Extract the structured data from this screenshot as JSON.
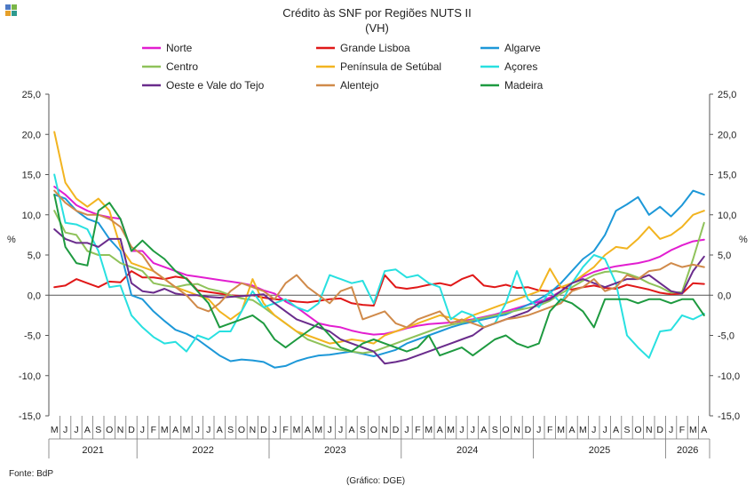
{
  "header": {
    "title": "Crédito às SNF por Regiões NUTS II",
    "subtitle": "(VH)",
    "logo_colors": [
      "#4e79c4",
      "#7ab648",
      "#e6a02a",
      "#2e9a8e"
    ]
  },
  "footer": {
    "source": "Fonte: BdP",
    "credit": "(Gráfico: DGE)"
  },
  "chart_data": {
    "type": "line",
    "title": "Crédito às SNF por Regiões NUTS II",
    "subtitle": "(VH)",
    "ylabel": "%",
    "ylim": [
      -15,
      25
    ],
    "yticks": [
      -15,
      -10,
      -5,
      0,
      5,
      10,
      15,
      20,
      25
    ],
    "ytick_labels": [
      "-15,0",
      "-10,0",
      "-5,0",
      "0,0",
      "5,0",
      "10,0",
      "15,0",
      "20,0",
      "25,0"
    ],
    "grid": false,
    "legend_position": "top",
    "months": [
      "M",
      "J",
      "J",
      "A",
      "S",
      "O",
      "N",
      "D",
      "J",
      "F",
      "M",
      "A",
      "M",
      "J",
      "J",
      "A",
      "S",
      "O",
      "N",
      "D",
      "J",
      "F",
      "M",
      "A",
      "M",
      "J",
      "J",
      "A",
      "S",
      "O",
      "N",
      "D",
      "J",
      "F",
      "M",
      "A",
      "M",
      "J",
      "J",
      "A",
      "S",
      "O",
      "N",
      "D",
      "J",
      "F",
      "M",
      "A",
      "M",
      "J",
      "J",
      "A",
      "S",
      "O",
      "N",
      "D",
      "J",
      "F",
      "M",
      "A"
    ],
    "years": [
      {
        "label": "2021",
        "start": 0,
        "end": 8
      },
      {
        "label": "2022",
        "start": 8,
        "end": 20
      },
      {
        "label": "2023",
        "start": 20,
        "end": 32
      },
      {
        "label": "2024",
        "start": 32,
        "end": 44
      },
      {
        "label": "2025",
        "start": 44,
        "end": 56
      },
      {
        "label": "2026",
        "start": 56,
        "end": 60
      }
    ],
    "series": [
      {
        "name": "Norte",
        "color": "#e21ed0",
        "values": [
          13.5,
          12.5,
          11.2,
          10.5,
          10.0,
          9.7,
          9.5,
          5.5,
          5.5,
          4.0,
          3.5,
          3.0,
          2.5,
          2.3,
          2.1,
          1.9,
          1.7,
          1.5,
          1.2,
          0.6,
          0.2,
          -0.8,
          -1.5,
          -2.5,
          -3.5,
          -3.8,
          -4.0,
          -4.4,
          -4.7,
          -4.9,
          -4.8,
          -4.5,
          -4.1,
          -3.8,
          -3.6,
          -3.5,
          -3.4,
          -3.2,
          -3.0,
          -2.7,
          -2.4,
          -2.0,
          -1.6,
          -1.2,
          -0.8,
          -0.3,
          0.5,
          1.5,
          2.3,
          2.9,
          3.3,
          3.6,
          3.8,
          4.0,
          4.3,
          4.8,
          5.6,
          6.2,
          6.7,
          6.9
        ]
      },
      {
        "name": "Grande Lisboa",
        "color": "#e01818",
        "values": [
          1.0,
          1.2,
          2.0,
          1.5,
          1.0,
          1.7,
          1.6,
          3.0,
          2.2,
          2.2,
          2.0,
          2.3,
          2.1,
          0.6,
          0.4,
          0.2,
          0.0,
          -0.1,
          0.0,
          -0.3,
          -0.5,
          -0.6,
          -0.8,
          -0.9,
          -0.7,
          -0.5,
          -0.4,
          -1.0,
          -1.2,
          -1.3,
          2.5,
          1.0,
          0.8,
          1.0,
          1.3,
          1.5,
          1.2,
          2.0,
          2.5,
          1.2,
          1.0,
          1.3,
          0.9,
          1.0,
          0.6,
          0.5,
          1.0,
          0.7,
          1.0,
          1.2,
          0.9,
          0.8,
          1.3,
          1.0,
          0.7,
          0.3,
          0.1,
          0.2,
          1.5,
          1.4
        ]
      },
      {
        "name": "Algarve",
        "color": "#1d98d8",
        "values": [
          12.5,
          12.0,
          10.5,
          9.5,
          9.0,
          7.0,
          5.5,
          0.0,
          -0.5,
          -2.0,
          -3.2,
          -4.3,
          -4.8,
          -5.5,
          -6.5,
          -7.5,
          -8.2,
          -8.0,
          -8.1,
          -8.3,
          -9.0,
          -8.8,
          -8.2,
          -7.8,
          -7.5,
          -7.4,
          -7.2,
          -7.0,
          -7.3,
          -7.6,
          -7.2,
          -6.8,
          -6.0,
          -5.5,
          -5.0,
          -4.5,
          -4.0,
          -3.6,
          -3.3,
          -3.0,
          -2.7,
          -2.4,
          -1.8,
          -1.2,
          -0.5,
          0.3,
          1.5,
          3.0,
          4.5,
          5.5,
          7.5,
          10.5,
          11.3,
          12.2,
          10.0,
          11.0,
          9.8,
          11.2,
          13.0,
          12.5
        ]
      },
      {
        "name": "Centro",
        "color": "#8fc25a",
        "values": [
          10.5,
          7.8,
          7.5,
          5.5,
          5.0,
          5.0,
          4.0,
          3.5,
          3.0,
          1.5,
          1.2,
          1.0,
          1.3,
          1.4,
          0.8,
          0.5,
          0.0,
          -0.4,
          -0.6,
          -1.5,
          -2.5,
          -3.5,
          -4.5,
          -5.5,
          -6.0,
          -6.5,
          -6.8,
          -7.0,
          -7.2,
          -7.0,
          -6.5,
          -6.0,
          -5.5,
          -5.0,
          -4.5,
          -4.0,
          -3.7,
          -3.4,
          -3.1,
          -2.8,
          -2.5,
          -2.2,
          -1.9,
          -1.6,
          -1.3,
          -0.7,
          0.2,
          1.0,
          1.8,
          2.5,
          2.9,
          3.0,
          2.7,
          2.2,
          1.5,
          1.0,
          0.3,
          0.4,
          4.5,
          9.0
        ]
      },
      {
        "name": "Península de Setúbal",
        "color": "#f2b420",
        "values": [
          20.3,
          14.0,
          12.0,
          11.0,
          12.0,
          10.5,
          6.0,
          4.0,
          3.5,
          3.0,
          2.0,
          1.0,
          0.5,
          0.0,
          -0.5,
          -2.0,
          -3.0,
          -2.0,
          2.0,
          -1.0,
          -2.5,
          -3.5,
          -4.5,
          -5.0,
          -5.5,
          -6.0,
          -5.8,
          -5.5,
          -5.7,
          -6.0,
          -5.0,
          -4.5,
          -4.0,
          -3.5,
          -3.0,
          -2.5,
          -2.8,
          -3.2,
          -2.5,
          -2.0,
          -1.5,
          -1.0,
          -0.5,
          0.0,
          0.5,
          3.3,
          1.0,
          1.5,
          2.5,
          3.5,
          5.0,
          6.0,
          5.8,
          7.0,
          8.5,
          7.0,
          7.5,
          8.5,
          10.0,
          10.5
        ]
      },
      {
        "name": "Açores",
        "color": "#28e0e0",
        "values": [
          15.0,
          9.0,
          8.8,
          8.2,
          5.5,
          1.0,
          1.2,
          -2.5,
          -4.0,
          -5.2,
          -6.0,
          -5.8,
          -7.0,
          -5.0,
          -5.5,
          -4.5,
          -4.5,
          -2.0,
          0.5,
          -1.5,
          -1.0,
          -0.5,
          -1.5,
          -2.0,
          -1.0,
          2.5,
          2.0,
          1.5,
          1.8,
          -1.0,
          3.0,
          3.2,
          2.2,
          2.5,
          1.5,
          1.0,
          -3.0,
          -2.0,
          -2.5,
          -4.0,
          -3.5,
          -1.0,
          3.0,
          -0.5,
          -1.5,
          0.5,
          -1.0,
          1.5,
          3.5,
          5.0,
          4.5,
          1.5,
          -5.0,
          -6.5,
          -7.8,
          -4.5,
          -4.3,
          -2.5,
          -3.0,
          -2.3
        ]
      },
      {
        "name": "Oeste e Vale do Tejo",
        "color": "#6a2c8c",
        "values": [
          8.2,
          7.0,
          6.5,
          6.5,
          6.0,
          7.0,
          7.0,
          1.5,
          0.5,
          0.3,
          0.8,
          0.2,
          0.0,
          0.0,
          -0.2,
          -0.3,
          -0.2,
          -0.1,
          0.0,
          0.1,
          -1.0,
          -2.0,
          -3.0,
          -3.5,
          -4.0,
          -4.5,
          -5.5,
          -6.0,
          -6.5,
          -7.0,
          -8.5,
          -8.3,
          -8.0,
          -7.5,
          -7.0,
          -6.5,
          -6.0,
          -5.5,
          -5.0,
          -4.0,
          -3.5,
          -3.0,
          -2.5,
          -2.0,
          -1.0,
          -0.5,
          0.5,
          1.5,
          2.0,
          1.5,
          1.0,
          1.5,
          2.0,
          2.0,
          2.5,
          1.5,
          0.5,
          0.2,
          3.0,
          4.8
        ]
      },
      {
        "name": "Alentejo",
        "color": "#d08a4a",
        "values": [
          13.0,
          11.5,
          10.5,
          10.0,
          10.0,
          9.5,
          8.5,
          6.0,
          5.0,
          3.0,
          2.0,
          1.0,
          0.0,
          -1.5,
          -2.0,
          -1.0,
          0.5,
          1.5,
          1.0,
          0.5,
          -0.5,
          1.5,
          2.5,
          1.0,
          0.0,
          -1.0,
          0.5,
          1.0,
          -3.0,
          -2.5,
          -2.0,
          -3.5,
          -4.0,
          -3.0,
          -2.5,
          -2.0,
          -3.5,
          -3.0,
          -3.5,
          -4.0,
          -3.5,
          -3.0,
          -2.8,
          -2.5,
          -2.0,
          -1.5,
          -1.0,
          0.5,
          1.0,
          2.0,
          0.5,
          1.0,
          2.5,
          2.0,
          3.0,
          3.2,
          4.0,
          3.5,
          3.8,
          3.5
        ]
      },
      {
        "name": "Madeira",
        "color": "#1e9a40",
        "values": [
          12.5,
          6.0,
          4.0,
          3.7,
          10.5,
          11.5,
          9.5,
          5.5,
          6.8,
          5.5,
          4.5,
          3.0,
          2.0,
          0.5,
          -1.0,
          -4.0,
          -3.5,
          -3.0,
          -2.5,
          -3.5,
          -5.5,
          -6.5,
          -5.5,
          -4.5,
          -3.5,
          -5.0,
          -6.5,
          -7.0,
          -6.0,
          -5.5,
          -6.0,
          -6.5,
          -7.0,
          -6.5,
          -5.0,
          -7.5,
          -7.0,
          -6.5,
          -7.5,
          -6.5,
          -5.5,
          -5.0,
          -6.0,
          -6.5,
          -6.0,
          -2.0,
          -0.5,
          -1.0,
          -2.0,
          -4.0,
          -0.5,
          -0.5,
          -0.5,
          -1.0,
          -0.5,
          -0.5,
          -1.0,
          -0.5,
          -0.5,
          -2.5
        ]
      }
    ]
  }
}
